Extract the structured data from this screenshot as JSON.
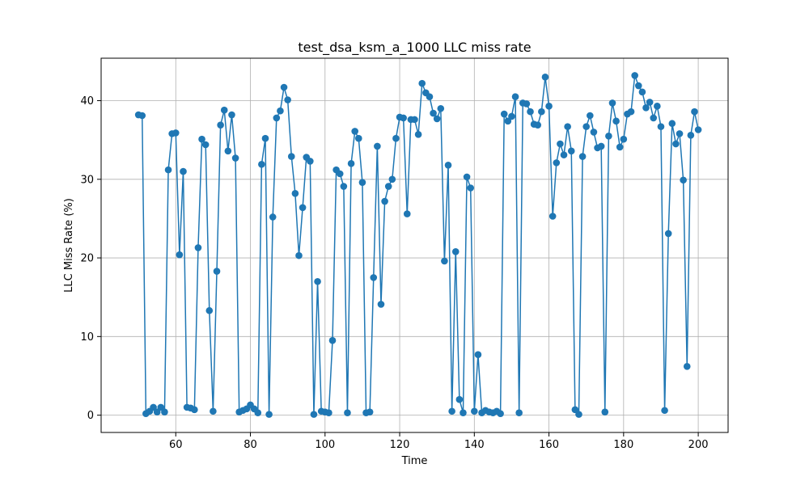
{
  "chart_data": {
    "type": "line",
    "title": "test_dsa_ksm_a_1000 LLC miss rate",
    "xlabel": "Time",
    "ylabel": "LLC Miss Rate (%)",
    "xlim": [
      40,
      208
    ],
    "ylim": [
      -2.2,
      45.4
    ],
    "xticks": [
      60,
      80,
      100,
      120,
      140,
      160,
      180,
      200
    ],
    "yticks": [
      0,
      10,
      20,
      30,
      40
    ],
    "grid": true,
    "marker": "circle",
    "color": "#1f77b4",
    "x": [
      50,
      51,
      52,
      53,
      54,
      55,
      56,
      57,
      58,
      59,
      60,
      61,
      62,
      63,
      64,
      65,
      66,
      67,
      68,
      69,
      70,
      71,
      72,
      73,
      74,
      75,
      76,
      77,
      78,
      79,
      80,
      81,
      82,
      83,
      84,
      85,
      86,
      87,
      88,
      89,
      90,
      91,
      92,
      93,
      94,
      95,
      96,
      97,
      98,
      99,
      100,
      101,
      102,
      103,
      104,
      105,
      106,
      107,
      108,
      109,
      110,
      111,
      112,
      113,
      114,
      115,
      116,
      117,
      118,
      119,
      120,
      121,
      122,
      123,
      124,
      125,
      126,
      127,
      128,
      129,
      130,
      131,
      132,
      133,
      134,
      135,
      136,
      137,
      138,
      139,
      140,
      141,
      142,
      143,
      144,
      145,
      146,
      147,
      148,
      149,
      150,
      151,
      152,
      153,
      154,
      155,
      156,
      157,
      158,
      159,
      160,
      161,
      162,
      163,
      164,
      165,
      166,
      167,
      168,
      169,
      170,
      171,
      172,
      173,
      174,
      175,
      176,
      177,
      178,
      179,
      180,
      181,
      182,
      183,
      184,
      185,
      186,
      187,
      188,
      189,
      190,
      191,
      192,
      193,
      194,
      195,
      196,
      197,
      198,
      199,
      200
    ],
    "y": [
      38.2,
      38.1,
      0.2,
      0.5,
      1.0,
      0.4,
      1.0,
      0.4,
      31.2,
      35.8,
      35.9,
      20.4,
      31.0,
      1.0,
      0.9,
      0.7,
      21.3,
      35.1,
      34.4,
      13.3,
      0.5,
      18.3,
      36.9,
      38.8,
      33.6,
      38.2,
      32.7,
      0.4,
      0.6,
      0.8,
      1.3,
      0.8,
      0.3,
      31.9,
      35.2,
      0.1,
      25.2,
      37.8,
      38.7,
      41.7,
      40.1,
      32.9,
      28.2,
      20.3,
      26.4,
      32.8,
      32.3,
      0.1,
      17.0,
      0.5,
      0.4,
      0.3,
      9.5,
      31.2,
      30.7,
      29.1,
      0.3,
      32.0,
      36.1,
      35.2,
      29.6,
      0.3,
      0.4,
      17.5,
      34.2,
      14.1,
      27.2,
      29.1,
      30.0,
      35.2,
      37.9,
      37.8,
      25.6,
      37.6,
      37.6,
      35.7,
      42.2,
      41.0,
      40.5,
      38.4,
      37.7,
      39.0,
      19.6,
      31.8,
      0.5,
      20.8,
      2.0,
      0.3,
      30.3,
      28.9,
      0.5,
      7.7,
      0.3,
      0.6,
      0.4,
      0.3,
      0.5,
      0.2,
      38.3,
      37.4,
      38.0,
      40.5,
      0.3,
      39.7,
      39.6,
      38.6,
      37.0,
      36.9,
      38.6,
      43.0,
      39.3,
      25.3,
      32.1,
      34.5,
      33.1,
      36.7,
      33.6,
      0.7,
      0.1,
      32.9,
      36.7,
      38.1,
      36.0,
      34.0,
      34.2,
      0.4,
      35.5,
      39.7,
      37.4,
      34.1,
      35.1,
      38.3,
      38.6,
      43.2,
      41.9,
      41.1,
      39.1,
      39.8,
      37.8,
      39.3,
      36.7,
      0.6,
      23.1,
      37.1,
      34.5,
      35.8,
      29.9,
      6.2,
      35.6,
      38.6,
      36.3
    ]
  }
}
